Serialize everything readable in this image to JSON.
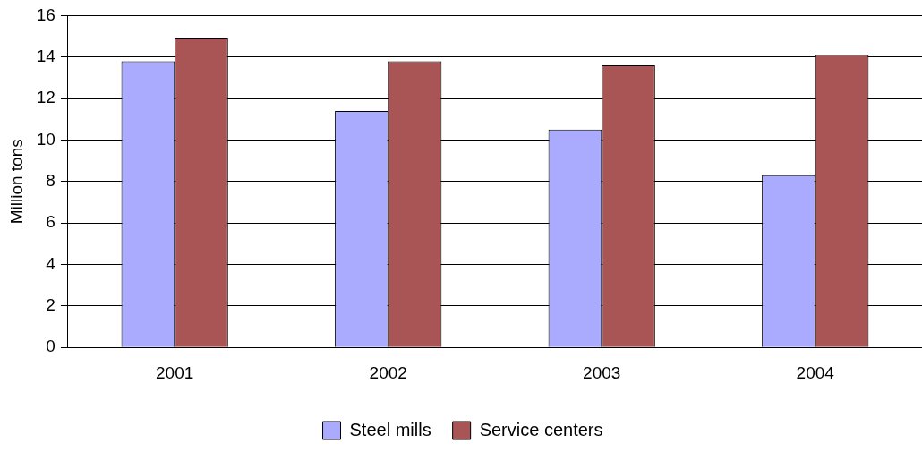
{
  "chart_data": {
    "type": "bar",
    "ylabel": "Million tons",
    "categories": [
      "2001",
      "2002",
      "2003",
      "2004"
    ],
    "series": [
      {
        "name": "Steel mills",
        "color": "#aaaaff",
        "values": [
          13.8,
          11.4,
          10.5,
          8.3
        ]
      },
      {
        "name": "Service centers",
        "color": "#aa5555",
        "values": [
          14.9,
          13.8,
          13.6,
          14.1
        ]
      }
    ],
    "ylim": [
      0,
      16
    ],
    "yticks": [
      0,
      2,
      4,
      6,
      8,
      10,
      12,
      14,
      16
    ],
    "grid": "y",
    "legend": "bottom"
  }
}
